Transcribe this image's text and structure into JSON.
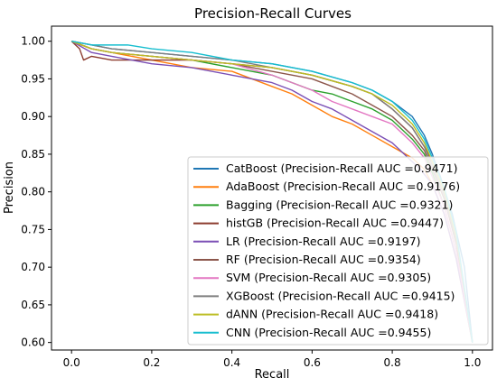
{
  "chart_data": {
    "type": "line",
    "title": "Precision-Recall Curves",
    "xlabel": "Recall",
    "ylabel": "Precision",
    "xlim": [
      -0.05,
      1.05
    ],
    "ylim": [
      0.59,
      1.02
    ],
    "xticks": [
      0.0,
      0.2,
      0.4,
      0.6,
      0.8,
      1.0
    ],
    "xtick_labels": [
      "0.0",
      "0.2",
      "0.4",
      "0.6",
      "0.8",
      "1.0"
    ],
    "yticks": [
      0.6,
      0.65,
      0.7,
      0.75,
      0.8,
      0.85,
      0.9,
      0.95,
      1.0
    ],
    "ytick_labels": [
      "0.60",
      "0.65",
      "0.70",
      "0.75",
      "0.80",
      "0.85",
      "0.90",
      "0.95",
      "1.00"
    ],
    "grid": false,
    "legend_position": "lower-right",
    "series": [
      {
        "name": "CatBoost (Precision-Recall AUC =0.9471)",
        "color": "#1f77b4",
        "x": [
          0.0,
          0.05,
          0.1,
          0.2,
          0.3,
          0.4,
          0.5,
          0.6,
          0.7,
          0.75,
          0.8,
          0.85,
          0.88,
          0.9,
          0.92,
          0.95,
          0.98,
          1.0
        ],
        "y": [
          1.0,
          0.995,
          0.99,
          0.985,
          0.98,
          0.975,
          0.97,
          0.96,
          0.945,
          0.935,
          0.92,
          0.9,
          0.875,
          0.85,
          0.82,
          0.77,
          0.7,
          0.6
        ]
      },
      {
        "name": "AdaBoost (Precision-Recall AUC =0.9176)",
        "color": "#ff7f0e",
        "x": [
          0.0,
          0.05,
          0.1,
          0.2,
          0.3,
          0.4,
          0.45,
          0.5,
          0.55,
          0.6,
          0.65,
          0.7,
          0.75,
          0.8,
          0.85,
          0.88,
          0.9,
          0.93,
          0.96,
          1.0
        ],
        "y": [
          1.0,
          0.99,
          0.985,
          0.975,
          0.965,
          0.96,
          0.95,
          0.94,
          0.93,
          0.915,
          0.9,
          0.89,
          0.875,
          0.86,
          0.845,
          0.83,
          0.81,
          0.77,
          0.71,
          0.6
        ]
      },
      {
        "name": "Bagging (Precision-Recall AUC =0.9321)",
        "color": "#2ca02c",
        "x": [
          0.0,
          0.05,
          0.1,
          0.2,
          0.3,
          0.4,
          0.5,
          0.55,
          0.6,
          0.65,
          0.7,
          0.75,
          0.8,
          0.85,
          0.88,
          0.9,
          0.93,
          0.96,
          1.0
        ],
        "y": [
          1.0,
          0.99,
          0.985,
          0.98,
          0.975,
          0.965,
          0.955,
          0.945,
          0.935,
          0.93,
          0.92,
          0.91,
          0.895,
          0.87,
          0.85,
          0.825,
          0.78,
          0.72,
          0.6
        ]
      },
      {
        "name": "histGB (Precision-Recall AUC =0.9447)",
        "color": "#8c3b2e",
        "x": [
          0.0,
          0.02,
          0.03,
          0.05,
          0.1,
          0.2,
          0.3,
          0.4,
          0.5,
          0.6,
          0.7,
          0.75,
          0.8,
          0.85,
          0.88,
          0.9,
          0.93,
          0.96,
          1.0
        ],
        "y": [
          1.0,
          0.99,
          0.975,
          0.98,
          0.975,
          0.975,
          0.975,
          0.97,
          0.965,
          0.955,
          0.94,
          0.93,
          0.91,
          0.885,
          0.86,
          0.84,
          0.8,
          0.74,
          0.6
        ]
      },
      {
        "name": "LR (Precision-Recall AUC =0.9197)",
        "color": "#7b4fb5",
        "x": [
          0.0,
          0.05,
          0.1,
          0.15,
          0.2,
          0.3,
          0.4,
          0.5,
          0.55,
          0.6,
          0.65,
          0.7,
          0.75,
          0.8,
          0.84,
          0.87,
          0.9,
          0.93,
          0.96,
          1.0
        ],
        "y": [
          1.0,
          0.985,
          0.98,
          0.975,
          0.97,
          0.965,
          0.955,
          0.945,
          0.935,
          0.92,
          0.91,
          0.895,
          0.88,
          0.865,
          0.845,
          0.83,
          0.81,
          0.77,
          0.71,
          0.6
        ]
      },
      {
        "name": "RF (Precision-Recall AUC =0.9354)",
        "color": "#8c564b",
        "x": [
          0.0,
          0.05,
          0.1,
          0.2,
          0.3,
          0.4,
          0.5,
          0.6,
          0.65,
          0.7,
          0.75,
          0.8,
          0.85,
          0.88,
          0.9,
          0.93,
          0.96,
          1.0
        ],
        "y": [
          1.0,
          0.99,
          0.985,
          0.98,
          0.975,
          0.97,
          0.96,
          0.95,
          0.94,
          0.93,
          0.915,
          0.9,
          0.875,
          0.855,
          0.83,
          0.79,
          0.73,
          0.6
        ]
      },
      {
        "name": "SVM (Precision-Recall AUC =0.9305)",
        "color": "#e377c2",
        "x": [
          0.0,
          0.05,
          0.1,
          0.2,
          0.3,
          0.4,
          0.5,
          0.55,
          0.6,
          0.65,
          0.7,
          0.75,
          0.8,
          0.85,
          0.88,
          0.9,
          0.93,
          0.96,
          1.0
        ],
        "y": [
          1.0,
          0.99,
          0.985,
          0.98,
          0.975,
          0.97,
          0.955,
          0.945,
          0.935,
          0.92,
          0.91,
          0.9,
          0.89,
          0.865,
          0.845,
          0.82,
          0.78,
          0.72,
          0.6
        ]
      },
      {
        "name": "XGBoost (Precision-Recall AUC =0.9415)",
        "color": "#7f7f7f",
        "x": [
          0.0,
          0.05,
          0.1,
          0.2,
          0.3,
          0.4,
          0.5,
          0.6,
          0.7,
          0.75,
          0.8,
          0.85,
          0.88,
          0.9,
          0.93,
          0.96,
          1.0
        ],
        "y": [
          1.0,
          0.995,
          0.99,
          0.985,
          0.98,
          0.975,
          0.965,
          0.955,
          0.94,
          0.93,
          0.91,
          0.885,
          0.86,
          0.835,
          0.795,
          0.735,
          0.6
        ]
      },
      {
        "name": "dANN (Precision-Recall AUC =0.9418)",
        "color": "#bcbd22",
        "x": [
          0.0,
          0.05,
          0.1,
          0.2,
          0.3,
          0.4,
          0.5,
          0.6,
          0.7,
          0.75,
          0.8,
          0.85,
          0.88,
          0.9,
          0.93,
          0.96,
          1.0
        ],
        "y": [
          1.0,
          0.99,
          0.985,
          0.98,
          0.975,
          0.97,
          0.965,
          0.955,
          0.94,
          0.93,
          0.915,
          0.89,
          0.865,
          0.84,
          0.8,
          0.74,
          0.6
        ]
      },
      {
        "name": "CNN (Precision-Recall AUC =0.9455)",
        "color": "#17becf",
        "x": [
          0.0,
          0.05,
          0.1,
          0.14,
          0.2,
          0.3,
          0.4,
          0.5,
          0.6,
          0.7,
          0.75,
          0.8,
          0.85,
          0.88,
          0.9,
          0.93,
          0.96,
          1.0
        ],
        "y": [
          1.0,
          0.995,
          0.995,
          0.995,
          0.99,
          0.985,
          0.975,
          0.97,
          0.96,
          0.945,
          0.935,
          0.92,
          0.895,
          0.87,
          0.845,
          0.805,
          0.745,
          0.6
        ]
      }
    ]
  }
}
